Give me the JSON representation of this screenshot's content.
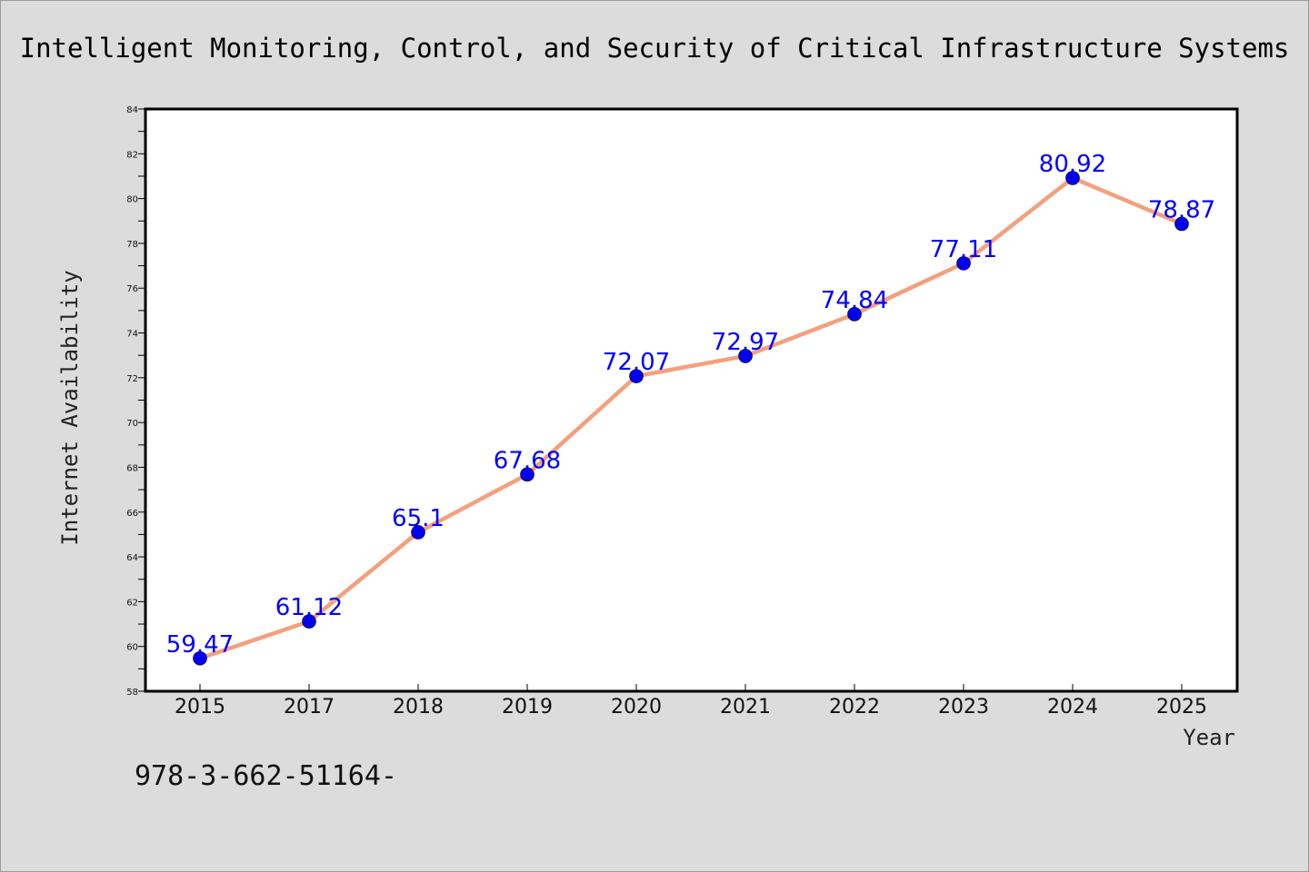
{
  "chart_data": {
    "type": "line",
    "title": "Intelligent Monitoring, Control, and Security of Critical Infrastructure Systems",
    "xlabel": "Year",
    "ylabel": "Internet Availability",
    "categories": [
      "2015",
      "2017",
      "2018",
      "2019",
      "2020",
      "2021",
      "2022",
      "2023",
      "2024",
      "2025"
    ],
    "series": [
      {
        "values": [
          59.47,
          61.12,
          65.1,
          67.68,
          72.07,
          72.97,
          74.84,
          77.11,
          80.92,
          78.87
        ],
        "labels": [
          "59.47",
          "61.12",
          "65.1",
          "67.68",
          "72.07",
          "72.97",
          "74.84",
          "77.11",
          "80.92",
          "78.87"
        ],
        "line_color": "#f4a07c",
        "marker_color": "#0000ee"
      }
    ],
    "ylim": [
      58,
      84
    ],
    "yticks": [
      58,
      60,
      62,
      64,
      66,
      68,
      70,
      72,
      74,
      76,
      78,
      80,
      82,
      84
    ],
    "ytick_labels": [
      "58",
      "60",
      "62",
      "64",
      "66",
      "68",
      "70",
      "72",
      "74",
      "76",
      "78",
      "80",
      "82",
      "84"
    ],
    "data_labels": true,
    "grid": false,
    "legend": "none"
  },
  "footer_text": "978-3-662-51164-",
  "colors": {
    "background": "#dcdcdc",
    "plot_background": "#ffffff",
    "line": "#f4a07c",
    "marker": "#0000ee",
    "data_label": "#0000ff"
  }
}
